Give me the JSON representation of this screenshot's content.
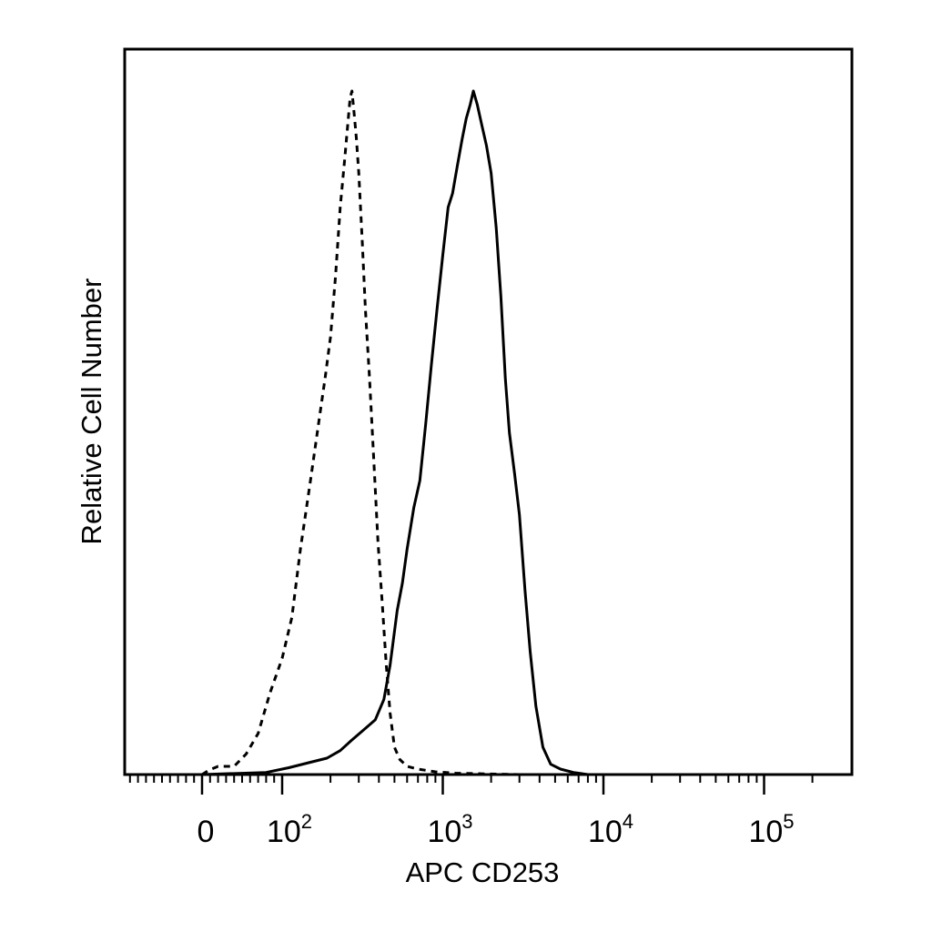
{
  "chart_data": {
    "type": "line",
    "title": "",
    "xlabel": "APC CD253",
    "ylabel": "Relative Cell Number",
    "x_scale": "biexponential (log above ~100)",
    "xlim": [
      -30,
      250000
    ],
    "ylim": [
      0,
      100
    ],
    "grid": false,
    "legend": "none",
    "x_tick_labels": [
      {
        "base": "0",
        "exp": "",
        "value": 0
      },
      {
        "base": "10",
        "exp": "2",
        "value": 100
      },
      {
        "base": "10",
        "exp": "3",
        "value": 1000
      },
      {
        "base": "10",
        "exp": "4",
        "value": 10000
      },
      {
        "base": "10",
        "exp": "5",
        "value": 100000
      }
    ],
    "series": [
      {
        "style": "dashed",
        "color": "#000000",
        "points": [
          [
            0,
            0
          ],
          [
            8,
            0.6
          ],
          [
            20,
            1.2
          ],
          [
            40,
            1.2
          ],
          [
            55,
            3
          ],
          [
            70,
            6
          ],
          [
            85,
            12
          ],
          [
            100,
            17
          ],
          [
            115,
            23
          ],
          [
            130,
            33
          ],
          [
            150,
            43
          ],
          [
            170,
            52
          ],
          [
            185,
            58
          ],
          [
            200,
            64
          ],
          [
            215,
            73
          ],
          [
            230,
            83
          ],
          [
            245,
            90
          ],
          [
            258,
            96
          ],
          [
            265,
            99
          ],
          [
            272,
            100
          ],
          [
            280,
            97
          ],
          [
            290,
            93
          ],
          [
            300,
            88
          ],
          [
            315,
            78
          ],
          [
            330,
            68
          ],
          [
            350,
            58
          ],
          [
            370,
            47
          ],
          [
            395,
            34
          ],
          [
            420,
            25
          ],
          [
            445,
            16
          ],
          [
            470,
            9
          ],
          [
            500,
            4
          ],
          [
            540,
            2.2
          ],
          [
            600,
            1.2
          ],
          [
            700,
            0.8
          ],
          [
            900,
            0.4
          ],
          [
            1200,
            0.2
          ],
          [
            1800,
            0.1
          ],
          [
            3000,
            0
          ]
        ]
      },
      {
        "style": "solid",
        "color": "#000000",
        "points": [
          [
            0,
            0
          ],
          [
            80,
            0.3
          ],
          [
            110,
            1
          ],
          [
            150,
            1.8
          ],
          [
            190,
            2.4
          ],
          [
            230,
            3.5
          ],
          [
            270,
            5
          ],
          [
            320,
            6.5
          ],
          [
            380,
            8
          ],
          [
            430,
            11
          ],
          [
            470,
            16
          ],
          [
            520,
            24
          ],
          [
            560,
            28
          ],
          [
            600,
            33
          ],
          [
            660,
            39
          ],
          [
            720,
            43
          ],
          [
            780,
            51
          ],
          [
            850,
            60
          ],
          [
            920,
            68
          ],
          [
            1000,
            76
          ],
          [
            1080,
            83
          ],
          [
            1150,
            85
          ],
          [
            1230,
            89
          ],
          [
            1320,
            93
          ],
          [
            1400,
            96
          ],
          [
            1480,
            98
          ],
          [
            1550,
            100
          ],
          [
            1640,
            98
          ],
          [
            1750,
            95
          ],
          [
            1870,
            92
          ],
          [
            2000,
            88
          ],
          [
            2150,
            80
          ],
          [
            2300,
            70
          ],
          [
            2450,
            58
          ],
          [
            2600,
            50
          ],
          [
            2800,
            44
          ],
          [
            3000,
            38
          ],
          [
            3250,
            27
          ],
          [
            3500,
            18
          ],
          [
            3800,
            10
          ],
          [
            4200,
            4
          ],
          [
            4700,
            1.5
          ],
          [
            5400,
            0.8
          ],
          [
            6500,
            0.3
          ],
          [
            8000,
            0
          ]
        ]
      }
    ]
  }
}
